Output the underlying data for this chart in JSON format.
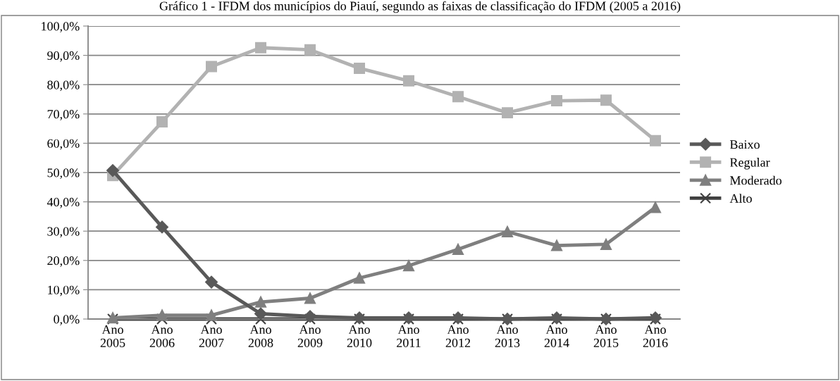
{
  "chart_data": {
    "type": "line",
    "title": "Gráfico 1 - IFDM dos municípios do Piauí, segundo as faixas de classificação do IFDM (2005 a 2016)",
    "categories": [
      "Ano\n2005",
      "Ano\n2006",
      "Ano\n2007",
      "Ano\n2008",
      "Ano\n2009",
      "Ano\n2010",
      "Ano\n2011",
      "Ano\n2012",
      "Ano\n2013",
      "Ano\n2014",
      "Ano\n2015",
      "Ano\n2016"
    ],
    "series": [
      {
        "name": "Baixo",
        "color": "#595959",
        "marker": "diamond",
        "values": [
          50.7,
          31.4,
          12.6,
          1.8,
          0.9,
          0.4,
          0.4,
          0.4,
          0.0,
          0.4,
          0.0,
          0.4
        ]
      },
      {
        "name": "Regular",
        "color": "#b2b2b2",
        "marker": "square",
        "values": [
          49.0,
          67.3,
          86.2,
          92.6,
          91.9,
          85.6,
          81.3,
          75.9,
          70.4,
          74.5,
          74.7,
          60.9
        ]
      },
      {
        "name": "Moderado",
        "color": "#7f7f7f",
        "marker": "triangle",
        "values": [
          0.4,
          1.3,
          1.3,
          5.8,
          7.1,
          14.0,
          18.2,
          23.8,
          29.8,
          25.1,
          25.5,
          38.1
        ]
      },
      {
        "name": "Alto",
        "color": "#404040",
        "marker": "cross",
        "values": [
          0,
          0,
          0,
          0,
          0,
          0,
          0,
          0,
          0,
          0,
          0,
          0
        ]
      }
    ],
    "ylim": [
      0,
      100
    ],
    "yticks": [
      {
        "value": 0,
        "label": "0,0%"
      },
      {
        "value": 10,
        "label": "10,0%"
      },
      {
        "value": 20,
        "label": "20,0%"
      },
      {
        "value": 30,
        "label": "30,0%"
      },
      {
        "value": 40,
        "label": "40,0%"
      },
      {
        "value": 50,
        "label": "50,0%"
      },
      {
        "value": 60,
        "label": "60,0%"
      },
      {
        "value": 70,
        "label": "70,0%"
      },
      {
        "value": 80,
        "label": "80,0%"
      },
      {
        "value": 90,
        "label": "90,0%"
      },
      {
        "value": 100,
        "label": "100,0%"
      }
    ],
    "grid": "y",
    "legend": "right"
  }
}
